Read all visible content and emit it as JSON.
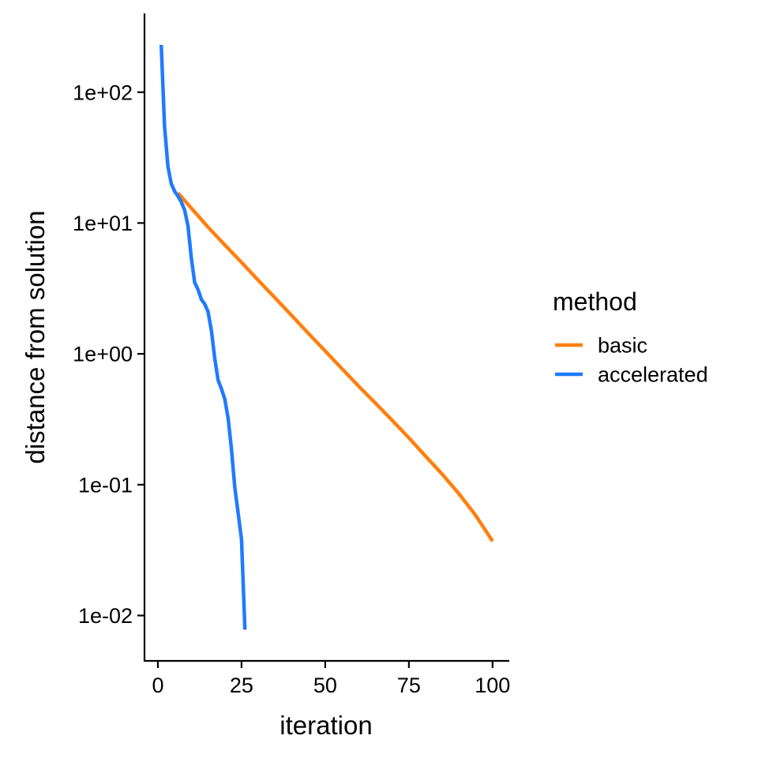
{
  "chart_data": {
    "type": "line",
    "title": "",
    "xlabel": "iteration",
    "ylabel": "distance from solution",
    "y_scale": "log10",
    "xlim": [
      -4,
      105
    ],
    "ylim": [
      0.0045,
      400
    ],
    "x_ticks": [
      0,
      25,
      50,
      75,
      100
    ],
    "x_tick_labels": [
      "0",
      "25",
      "50",
      "75",
      "100"
    ],
    "y_ticks": [
      0.01,
      0.1,
      1,
      10,
      100
    ],
    "y_tick_labels": [
      "1e-02",
      "1e-01",
      "1e+00",
      "1e+01",
      "1e+02"
    ],
    "grid": false,
    "legend": {
      "title": "method",
      "placement": "right",
      "entries": [
        {
          "name": "basic",
          "color": "#FF7F0E"
        },
        {
          "name": "accelerated",
          "color": "#1F7BFF"
        }
      ]
    },
    "series": [
      {
        "name": "basic",
        "color": "#FF7F0E",
        "x": [
          6,
          10,
          15,
          20,
          25,
          30,
          35,
          40,
          45,
          50,
          55,
          60,
          65,
          70,
          75,
          80,
          85,
          90,
          95,
          100
        ],
        "y": [
          17,
          13,
          9.3,
          6.8,
          5.0,
          3.65,
          2.68,
          1.96,
          1.43,
          1.05,
          0.77,
          0.565,
          0.42,
          0.31,
          0.228,
          0.165,
          0.12,
          0.085,
          0.058,
          0.037
        ]
      },
      {
        "name": "accelerated",
        "color": "#1F7BFF",
        "x": [
          1,
          2,
          3,
          4,
          5,
          6,
          7,
          8,
          9,
          10,
          11,
          12,
          13,
          14,
          15,
          16,
          17,
          18,
          19,
          20,
          21,
          22,
          23,
          24,
          25,
          26
        ],
        "y": [
          230,
          55,
          27,
          20,
          17.5,
          16,
          14.5,
          12.5,
          9.5,
          5.4,
          3.5,
          3.1,
          2.6,
          2.4,
          2.1,
          1.5,
          0.92,
          0.63,
          0.54,
          0.45,
          0.32,
          0.185,
          0.095,
          0.06,
          0.038,
          0.0078
        ]
      }
    ]
  }
}
